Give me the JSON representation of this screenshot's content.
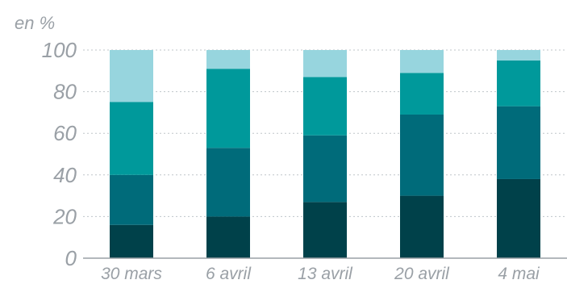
{
  "chart_data": {
    "type": "bar",
    "stacked": true,
    "unit_label": "en %",
    "categories": [
      "30 mars",
      "6 avril",
      "13 avril",
      "20 avril",
      "4 mai"
    ],
    "series": [
      {
        "color": "#00414a",
        "values": [
          16,
          20,
          27,
          30,
          38
        ]
      },
      {
        "color": "#006b7a",
        "values": [
          24,
          33,
          32,
          39,
          35
        ]
      },
      {
        "color": "#00999b",
        "values": [
          35,
          38,
          28,
          20,
          22
        ]
      },
      {
        "color": "#97d5de",
        "values": [
          25,
          9,
          13,
          11,
          5
        ]
      }
    ],
    "ylim": [
      0,
      100
    ],
    "yticks": [
      "0",
      "20",
      "40",
      "60",
      "80",
      "100"
    ],
    "grid": true,
    "legend": "none"
  }
}
